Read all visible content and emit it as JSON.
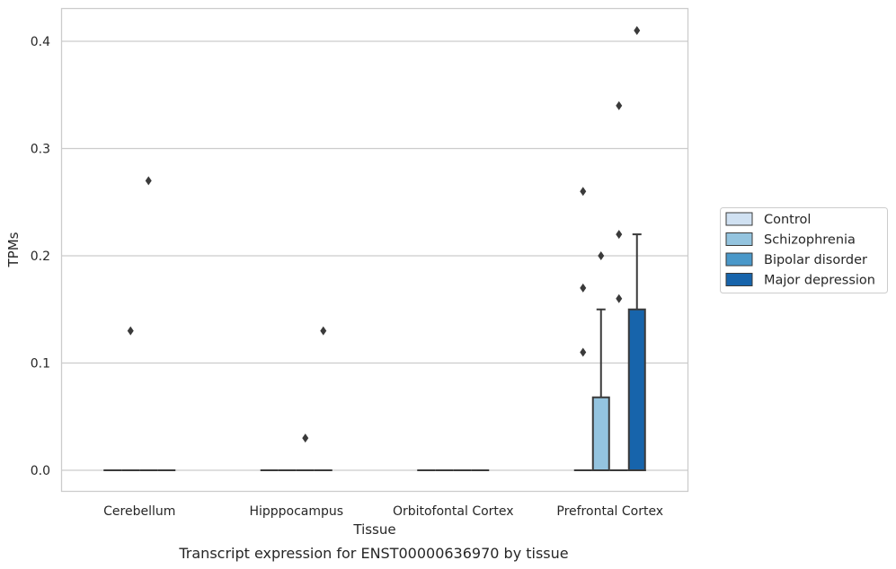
{
  "chart_data": {
    "type": "box",
    "xlabel": "Tissue",
    "ylabel": "TPMs",
    "caption": "Transcript expression for ENST00000636970 by tissue",
    "ylim": [
      -0.02,
      0.43
    ],
    "yticks": [
      0.0,
      0.1,
      0.2,
      0.3,
      0.4
    ],
    "ytick_labels": [
      "0.0",
      "0.1",
      "0.2",
      "0.3",
      "0.4"
    ],
    "grid": "horizontal",
    "legend_position": "right",
    "categories": [
      "Cerebellum",
      "Hipppocampus",
      "Orbitofontal Cortex",
      "Prefrontal Cortex"
    ],
    "series": [
      {
        "name": "Control",
        "color": "#d0e1f2",
        "boxes": [
          {
            "q1": 0,
            "median": 0,
            "q3": 0,
            "whisker_low": 0,
            "whisker_high": 0,
            "outliers": []
          },
          {
            "q1": 0,
            "median": 0,
            "q3": 0,
            "whisker_low": 0,
            "whisker_high": 0,
            "outliers": []
          },
          {
            "q1": 0,
            "median": 0,
            "q3": 0,
            "whisker_low": 0,
            "whisker_high": 0,
            "outliers": []
          },
          {
            "q1": 0,
            "median": 0,
            "q3": 0,
            "whisker_low": 0,
            "whisker_high": 0,
            "outliers": [
              0.11,
              0.17,
              0.26
            ]
          }
        ]
      },
      {
        "name": "Schizophrenia",
        "color": "#94c4df",
        "boxes": [
          {
            "q1": 0,
            "median": 0,
            "q3": 0,
            "whisker_low": 0,
            "whisker_high": 0,
            "outliers": [
              0.13
            ]
          },
          {
            "q1": 0,
            "median": 0,
            "q3": 0,
            "whisker_low": 0,
            "whisker_high": 0,
            "outliers": []
          },
          {
            "q1": 0,
            "median": 0,
            "q3": 0,
            "whisker_low": 0,
            "whisker_high": 0,
            "outliers": []
          },
          {
            "q1": 0,
            "median": 0,
            "q3": 0.068,
            "whisker_low": 0,
            "whisker_high": 0.15,
            "outliers": [
              0.2
            ]
          }
        ]
      },
      {
        "name": "Bipolar disorder",
        "color": "#4a98c9",
        "boxes": [
          {
            "q1": 0,
            "median": 0,
            "q3": 0,
            "whisker_low": 0,
            "whisker_high": 0,
            "outliers": [
              0.27
            ]
          },
          {
            "q1": 0,
            "median": 0,
            "q3": 0,
            "whisker_low": 0,
            "whisker_high": 0,
            "outliers": [
              0.03
            ]
          },
          {
            "q1": 0,
            "median": 0,
            "q3": 0,
            "whisker_low": 0,
            "whisker_high": 0,
            "outliers": []
          },
          {
            "q1": 0,
            "median": 0,
            "q3": 0,
            "whisker_low": 0,
            "whisker_high": 0,
            "outliers": [
              0.16,
              0.22,
              0.34
            ]
          }
        ]
      },
      {
        "name": "Major depression",
        "color": "#1764ab",
        "boxes": [
          {
            "q1": 0,
            "median": 0,
            "q3": 0,
            "whisker_low": 0,
            "whisker_high": 0,
            "outliers": []
          },
          {
            "q1": 0,
            "median": 0,
            "q3": 0,
            "whisker_low": 0,
            "whisker_high": 0,
            "outliers": [
              0.13
            ]
          },
          {
            "q1": 0,
            "median": 0,
            "q3": 0,
            "whisker_low": 0,
            "whisker_high": 0,
            "outliers": []
          },
          {
            "q1": 0,
            "median": 0,
            "q3": 0.15,
            "whisker_low": 0,
            "whisker_high": 0.22,
            "outliers": [
              0.41
            ]
          }
        ]
      }
    ]
  }
}
